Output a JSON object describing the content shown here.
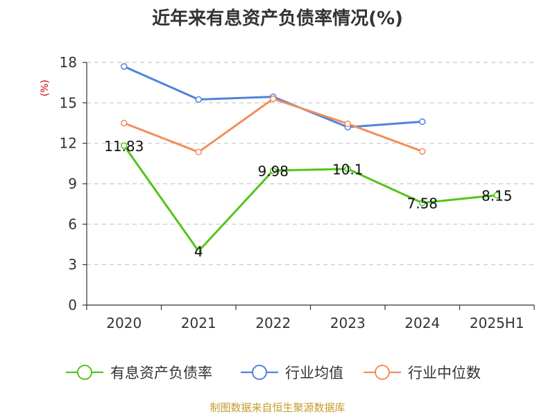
{
  "chart_data": {
    "type": "line",
    "title": "近年来有息资产负债率情况(%)",
    "ylabel": "(%)",
    "xlabel": "",
    "categories": [
      "2020",
      "2021",
      "2022",
      "2023",
      "2024",
      "2025H1"
    ],
    "ylim": [
      0,
      18
    ],
    "yticks": [
      0,
      3,
      6,
      9,
      12,
      15,
      18
    ],
    "grid": true,
    "legend_position": "bottom",
    "series": [
      {
        "name": "有息资产负债率",
        "color": "#52c41a",
        "values": [
          11.83,
          4,
          9.98,
          10.1,
          7.58,
          8.15
        ],
        "data_labels": [
          "11.83",
          "4",
          "9.98",
          "10.1",
          "7.58",
          "8.15"
        ]
      },
      {
        "name": "行业均值",
        "color": "#4e83db",
        "values": [
          17.7,
          15.25,
          15.45,
          13.2,
          13.6,
          null
        ]
      },
      {
        "name": "行业中位数",
        "color": "#f28e5a",
        "values": [
          13.5,
          11.35,
          15.3,
          13.45,
          11.4,
          null
        ]
      }
    ]
  },
  "source": "制图数据来自恒生聚源数据库",
  "colors": {
    "axis": "#333333",
    "grid": "#c8c8c8",
    "ylabel": "#cc0000",
    "source": "#c59a2d"
  }
}
